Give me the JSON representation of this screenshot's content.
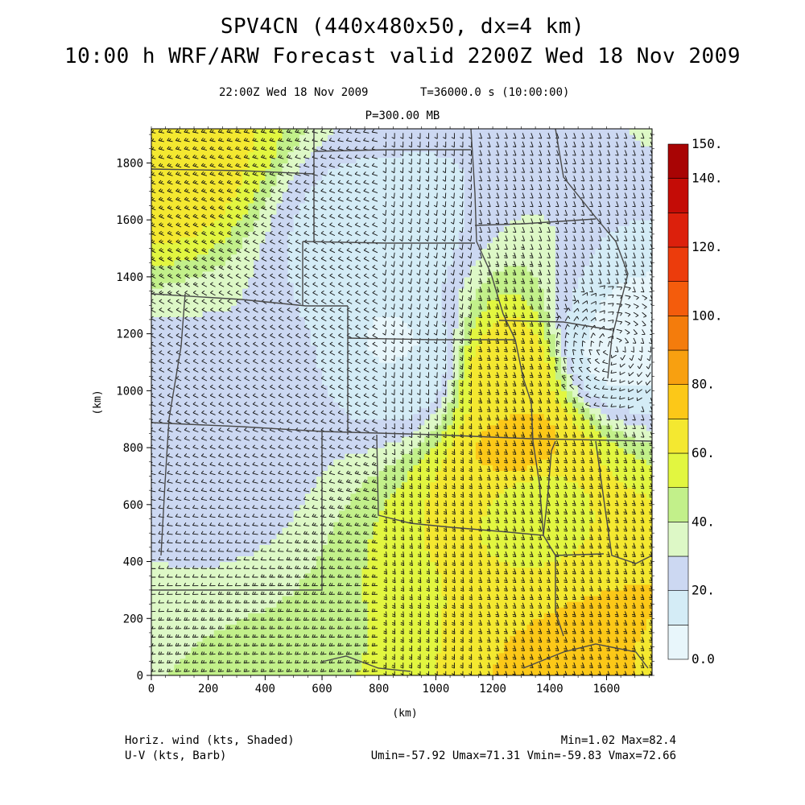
{
  "header": {
    "title_line1": "SPV4CN (440x480x50, dx=4 km)",
    "title_line2": "10:00 h WRF/ARW Forecast valid 2200Z Wed 18 Nov 2009",
    "valid_time": "22:00Z Wed 18 Nov 2009",
    "model_time": "T=36000.0 s (10:00:00)",
    "pressure_level": "P=300.00 MB"
  },
  "footer": {
    "shaded_field": "Horiz. wind (kts, Shaded)",
    "barb_field": "U-V (kts, Barb)",
    "minmax": "Min=1.02 Max=82.4",
    "uv_stats": "Umin=-57.92 Umax=71.31 Vmin=-59.83 Vmax=72.66"
  },
  "colors": {
    "background": "#ffffff",
    "state_borders": "#4a4a4a",
    "barbs": "#111111"
  },
  "chart_data": {
    "type": "heatmap",
    "title": "SPV4CN (440x480x50, dx=4 km)",
    "xlabel": "(km)",
    "ylabel": "(km)",
    "xlim": [
      0,
      1760
    ],
    "ylim": [
      0,
      1920
    ],
    "x_ticks": [
      0,
      200,
      400,
      600,
      800,
      1000,
      1200,
      1400,
      1600
    ],
    "y_ticks": [
      0,
      200,
      400,
      600,
      800,
      1000,
      1200,
      1400,
      1600,
      1800
    ],
    "colorbar": {
      "units": "kts",
      "levels": [
        0,
        10,
        20,
        30,
        40,
        50,
        60,
        70,
        80,
        90,
        100,
        110,
        120,
        130,
        140,
        150
      ],
      "tick_labels": [
        "0.0",
        "20.",
        "40.",
        "60.",
        "80.",
        "100.",
        "120.",
        "140.",
        "150."
      ],
      "colors": [
        "#e8f6fb",
        "#d4ecf6",
        "#ccd8f2",
        "#ddf8c6",
        "#c2f08a",
        "#e2f640",
        "#f4e830",
        "#fcc818",
        "#f8a010",
        "#f47c0c",
        "#f45c0c",
        "#ec3c0c",
        "#dc200c",
        "#c40c06",
        "#a80404"
      ]
    },
    "wind_field_regions": [
      {
        "name": "jet-core",
        "x": 1300,
        "y": 800,
        "speed": 75
      },
      {
        "name": "jet-north",
        "x": 1250,
        "y": 1050,
        "speed": 65
      },
      {
        "name": "jet-south",
        "x": 1350,
        "y": 600,
        "speed": 60
      },
      {
        "name": "southeast",
        "x": 1650,
        "y": 60,
        "speed": 72
      },
      {
        "name": "far-northwest",
        "x": 60,
        "y": 1880,
        "speed": 68
      },
      {
        "name": "trough-center",
        "x": 900,
        "y": 1100,
        "speed": 12
      },
      {
        "name": "trough-north",
        "x": 780,
        "y": 1500,
        "speed": 14
      },
      {
        "name": "low-center",
        "x": 1620,
        "y": 1150,
        "speed": 8
      },
      {
        "name": "west-plains",
        "x": 300,
        "y": 1000,
        "speed": 25
      }
    ]
  }
}
